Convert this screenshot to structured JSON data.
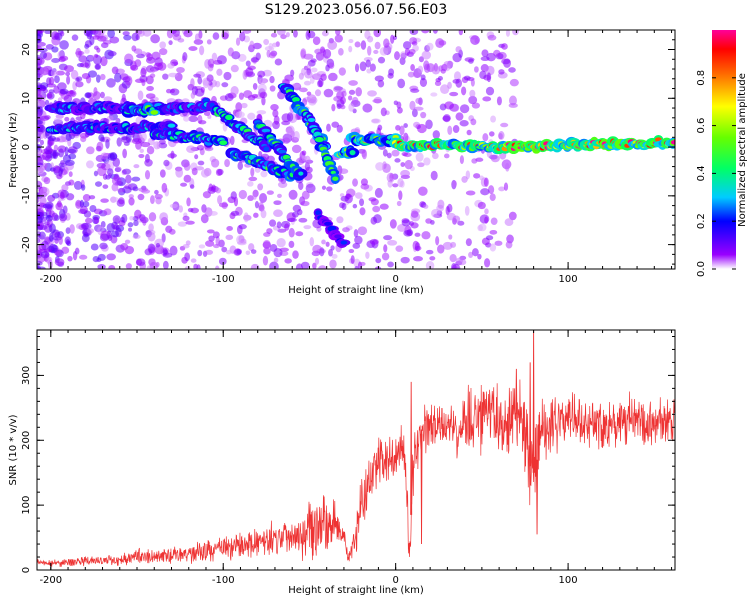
{
  "figure": {
    "title": "S129.2023.056.07.56.E03"
  },
  "chart_data": [
    {
      "type": "heatmap",
      "xlabel": "Height of straight line (km)",
      "ylabel": "Frequency (Hz)",
      "xlim": [
        -208,
        162
      ],
      "ylim": [
        -25,
        24
      ],
      "xticks": [
        -200,
        -100,
        0,
        100
      ],
      "yticks": [
        -20,
        -10,
        0,
        10,
        20
      ],
      "xticklabels": [
        "-200",
        "-100",
        "0",
        "100"
      ],
      "yticklabels": [
        "-20",
        "-10",
        "0",
        "10",
        "20"
      ],
      "colorbar": {
        "label": "Normalized spectral amplitude",
        "range": [
          0,
          1
        ],
        "ticks": [
          0.0,
          0.2,
          0.4,
          0.6,
          0.8
        ],
        "ticklabels": [
          "0.0",
          "0.2",
          "0.4",
          "0.6",
          "0.8"
        ]
      },
      "features": [
        {
          "x": [
            -200,
            -130
          ],
          "y": [
            4,
            4
          ],
          "amp": 0.35
        },
        {
          "x": [
            -200,
            -110
          ],
          "y": [
            8,
            8
          ],
          "amp": 0.3
        },
        {
          "x": [
            -155,
            -140
          ],
          "y": [
            7.5,
            7.5
          ],
          "amp": 0.5
        },
        {
          "x": [
            -140,
            -100
          ],
          "y": [
            3,
            1
          ],
          "amp": 0.4
        },
        {
          "x": [
            -110,
            -75
          ],
          "y": [
            9,
            0
          ],
          "amp": 0.4
        },
        {
          "x": [
            -95,
            -60
          ],
          "y": [
            -1,
            -6
          ],
          "amp": 0.45
        },
        {
          "x": [
            -80,
            -55
          ],
          "y": [
            5,
            -6
          ],
          "amp": 0.45
        },
        {
          "x": [
            -65,
            -40
          ],
          "y": [
            13,
            0
          ],
          "amp": 0.5
        },
        {
          "x": [
            -50,
            -35
          ],
          "y": [
            6,
            -6
          ],
          "amp": 0.45
        },
        {
          "x": [
            -45,
            -30
          ],
          "y": [
            -14,
            -20
          ],
          "amp": 0.2
        },
        {
          "x": [
            -32,
            -25
          ],
          "y": [
            -1,
            -1
          ],
          "amp": 0.6
        },
        {
          "x": [
            -25,
            -10
          ],
          "y": [
            1.5,
            1.5
          ],
          "amp": 0.7
        },
        {
          "x": [
            -10,
            0
          ],
          "y": [
            1,
            2
          ],
          "amp": 0.55
        },
        {
          "x": [
            0,
            60
          ],
          "y": [
            0.5,
            0
          ],
          "amp": 0.85
        },
        {
          "x": [
            60,
            162
          ],
          "y": [
            0,
            1
          ],
          "amp": 0.95
        }
      ]
    },
    {
      "type": "line",
      "xlabel": "Height of straight line (km)",
      "ylabel": "SNR (10 * v/v)",
      "xlim": [
        -208,
        162
      ],
      "ylim": [
        0,
        370
      ],
      "xticks": [
        -200,
        -100,
        0,
        100
      ],
      "yticks": [
        0,
        100,
        200,
        300
      ],
      "xticklabels": [
        "-200",
        "-100",
        "0",
        "100"
      ],
      "yticklabels": [
        "0",
        "100",
        "200",
        "300"
      ],
      "color": "#ee3333",
      "x": [
        -208,
        -200,
        -190,
        -180,
        -170,
        -160,
        -150,
        -140,
        -130,
        -120,
        -110,
        -100,
        -95,
        -90,
        -85,
        -80,
        -75,
        -70,
        -65,
        -60,
        -55,
        -50,
        -45,
        -40,
        -35,
        -30,
        -28,
        -25,
        -20,
        -15,
        -10,
        -5,
        0,
        5,
        8,
        10,
        12,
        15,
        20,
        25,
        30,
        35,
        40,
        45,
        50,
        55,
        60,
        65,
        70,
        75,
        78,
        80,
        82,
        85,
        90,
        95,
        100,
        105,
        110,
        115,
        120,
        125,
        130,
        135,
        140,
        145,
        150,
        155,
        162
      ],
      "y": [
        12,
        10,
        12,
        14,
        14,
        16,
        22,
        20,
        22,
        25,
        30,
        34,
        35,
        38,
        40,
        42,
        44,
        50,
        52,
        55,
        60,
        65,
        70,
        68,
        75,
        50,
        20,
        30,
        100,
        140,
        170,
        160,
        175,
        190,
        20,
        150,
        185,
        210,
        215,
        220,
        225,
        210,
        230,
        225,
        235,
        240,
        230,
        238,
        240,
        210,
        160,
        150,
        170,
        215,
        230,
        228,
        235,
        240,
        230,
        228,
        225,
        230,
        225,
        230,
        228,
        222,
        226,
        230,
        228
      ],
      "peaks": [
        {
          "x": 9,
          "y": 290
        },
        {
          "x": 80,
          "y": 370
        },
        {
          "x": 78,
          "y": 320
        },
        {
          "x": 70,
          "y": 310
        },
        {
          "x": 15,
          "y": 40
        },
        {
          "x": 82,
          "y": 55
        }
      ]
    }
  ]
}
